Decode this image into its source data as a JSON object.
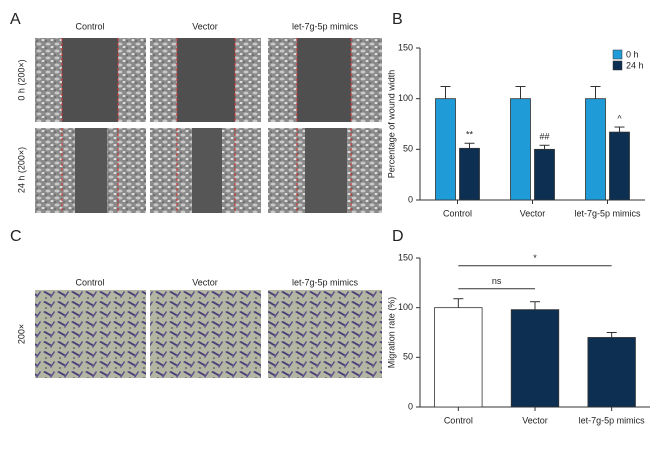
{
  "panels": {
    "a": "A",
    "b": "B",
    "c": "C",
    "d": "D"
  },
  "wound_images": {
    "columns": [
      "Control",
      "Vector",
      "let-7g-5p mimics"
    ],
    "rows": [
      "0 h (200×)",
      "24 h (200×)"
    ]
  },
  "transwell_images": {
    "columns": [
      "Control",
      "Vector",
      "let-7g-5p mimics"
    ],
    "row": "200×"
  },
  "chart_data": [
    {
      "type": "bar",
      "ylabel": "Percentage of wound width",
      "categories": [
        "Control",
        "Vector",
        "let-7g-5p mimics"
      ],
      "series": [
        {
          "name": "0 h",
          "color": "#1f9bd7",
          "values": [
            100,
            100,
            100
          ],
          "errors": [
            12,
            12,
            12
          ]
        },
        {
          "name": "24 h",
          "color": "#0d2f52",
          "values": [
            51,
            50,
            67
          ],
          "errors": [
            5,
            4,
            5
          ],
          "annotations": [
            "**",
            "##",
            "^"
          ]
        }
      ],
      "ylim": [
        0,
        150
      ],
      "yticks": [
        0,
        50,
        100,
        150
      ],
      "legend": "upper right"
    },
    {
      "type": "bar",
      "ylabel": "Migration rate (%)",
      "categories": [
        "Control",
        "Vector",
        "let-7g-5p mimics"
      ],
      "values": [
        100,
        98,
        70
      ],
      "errors": [
        9,
        8,
        5
      ],
      "colors": [
        "#ffffff",
        "#0d2f52",
        "#0d2f52"
      ],
      "comparisons": [
        {
          "label": "ns",
          "from": "Control",
          "to": "Vector"
        },
        {
          "label": "*",
          "from": "Control",
          "to": "let-7g-5p mimics"
        }
      ],
      "ylim": [
        0,
        150
      ],
      "yticks": [
        0,
        50,
        100,
        150
      ]
    }
  ]
}
